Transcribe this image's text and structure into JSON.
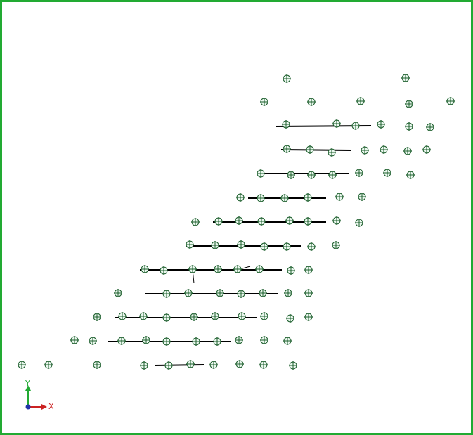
{
  "viewport": {
    "border_color": "#22aa33",
    "background": "#ffffff"
  },
  "triad": {
    "x_label": "X",
    "y_label": "Y",
    "x_color": "#cc2222",
    "y_color": "#22aa33",
    "origin_color": "#2233aa"
  },
  "markers": {
    "icon": "crosshair-circle-icon",
    "stroke": "#1a5c2a",
    "fill": "#eaf7ee",
    "points": [
      [
        408,
        112
      ],
      [
        577,
        111
      ],
      [
        376,
        145
      ],
      [
        443,
        145
      ],
      [
        513,
        144
      ],
      [
        582,
        148
      ],
      [
        641,
        144
      ],
      [
        407,
        177
      ],
      [
        479,
        176
      ],
      [
        506,
        179
      ],
      [
        542,
        177
      ],
      [
        582,
        180
      ],
      [
        612,
        181
      ],
      [
        408,
        212
      ],
      [
        441,
        213
      ],
      [
        472,
        217
      ],
      [
        519,
        214
      ],
      [
        546,
        213
      ],
      [
        580,
        215
      ],
      [
        607,
        213
      ],
      [
        371,
        247
      ],
      [
        414,
        249
      ],
      [
        443,
        249
      ],
      [
        473,
        249
      ],
      [
        511,
        246
      ],
      [
        551,
        246
      ],
      [
        584,
        249
      ],
      [
        342,
        281
      ],
      [
        371,
        282
      ],
      [
        405,
        282
      ],
      [
        438,
        281
      ],
      [
        483,
        280
      ],
      [
        515,
        280
      ],
      [
        278,
        316
      ],
      [
        311,
        315
      ],
      [
        340,
        314
      ],
      [
        372,
        315
      ],
      [
        412,
        314
      ],
      [
        438,
        315
      ],
      [
        479,
        314
      ],
      [
        511,
        317
      ],
      [
        270,
        348
      ],
      [
        306,
        349
      ],
      [
        343,
        348
      ],
      [
        376,
        351
      ],
      [
        408,
        351
      ],
      [
        443,
        351
      ],
      [
        478,
        349
      ],
      [
        206,
        383
      ],
      [
        233,
        385
      ],
      [
        274,
        383
      ],
      [
        310,
        383
      ],
      [
        338,
        383
      ],
      [
        369,
        383
      ],
      [
        414,
        385
      ],
      [
        439,
        384
      ],
      [
        168,
        417
      ],
      [
        237,
        418
      ],
      [
        268,
        417
      ],
      [
        313,
        417
      ],
      [
        343,
        418
      ],
      [
        374,
        417
      ],
      [
        410,
        417
      ],
      [
        439,
        417
      ],
      [
        138,
        451
      ],
      [
        174,
        450
      ],
      [
        204,
        450
      ],
      [
        237,
        452
      ],
      [
        276,
        451
      ],
      [
        306,
        450
      ],
      [
        344,
        450
      ],
      [
        376,
        450
      ],
      [
        413,
        453
      ],
      [
        439,
        451
      ],
      [
        106,
        484
      ],
      [
        132,
        485
      ],
      [
        173,
        485
      ],
      [
        208,
        484
      ],
      [
        237,
        486
      ],
      [
        279,
        486
      ],
      [
        309,
        486
      ],
      [
        340,
        484
      ],
      [
        376,
        484
      ],
      [
        409,
        485
      ],
      [
        31,
        519
      ],
      [
        69,
        519
      ],
      [
        138,
        519
      ],
      [
        205,
        520
      ],
      [
        240,
        520
      ],
      [
        271,
        518
      ],
      [
        304,
        519
      ],
      [
        341,
        518
      ],
      [
        375,
        519
      ],
      [
        417,
        520
      ]
    ]
  },
  "segments": {
    "stroke": "#000000",
    "lines": [
      [
        392,
        180,
        528,
        179
      ],
      [
        400,
        213,
        499,
        214
      ],
      [
        367,
        247,
        496,
        247
      ],
      [
        353,
        282,
        464,
        282
      ],
      [
        303,
        316,
        464,
        316
      ],
      [
        264,
        350,
        428,
        350
      ],
      [
        199,
        384,
        401,
        384
      ],
      [
        207,
        418,
        396,
        418
      ],
      [
        164,
        452,
        365,
        452
      ],
      [
        154,
        486,
        328,
        486
      ],
      [
        220,
        520,
        290,
        519
      ]
    ],
    "extras": [
      [
        274,
        384,
        276,
        403
      ],
      [
        345,
        382,
        356,
        379
      ]
    ]
  }
}
